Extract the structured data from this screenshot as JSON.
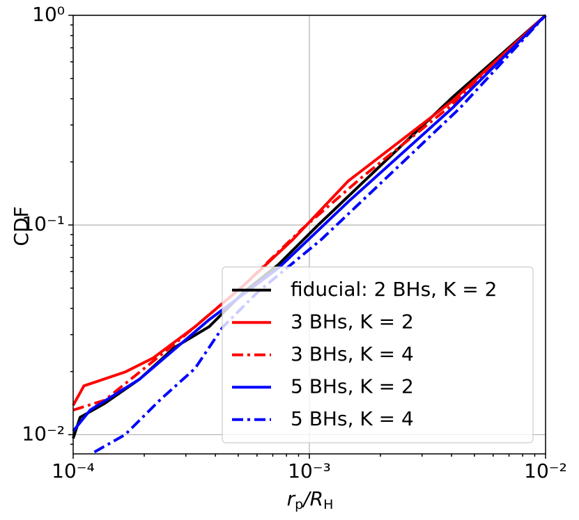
{
  "chart_data": {
    "type": "line",
    "y_label": "CDF",
    "x_label_parts": [
      "r",
      "p",
      "/R",
      "H"
    ],
    "xlog": true,
    "ylog": true,
    "grid": true,
    "legend": "lower right",
    "xlim": [
      0.0001,
      0.01
    ],
    "ylim": [
      0.0081,
      1
    ],
    "xticks": [
      {
        "value": 0.0001,
        "label": "10⁻⁴"
      },
      {
        "value": 0.001,
        "label": "10⁻³"
      },
      {
        "value": 0.01,
        "label": "10⁻²"
      }
    ],
    "yticks": [
      {
        "value": 0.01,
        "label": "10⁻²"
      },
      {
        "value": 0.1,
        "label": "10⁻¹"
      },
      {
        "value": 1,
        "label": "10⁰"
      }
    ],
    "xminorticks": [
      0.0002,
      0.0003,
      0.0004,
      0.0005,
      0.0006,
      0.0007,
      0.0008,
      0.0009,
      0.002,
      0.003,
      0.004,
      0.005,
      0.006,
      0.007,
      0.008,
      0.009
    ],
    "yminorticks": [
      0.009,
      0.02,
      0.03,
      0.04,
      0.05,
      0.06,
      0.07,
      0.08,
      0.09,
      0.2,
      0.3,
      0.4,
      0.5,
      0.6,
      0.7,
      0.8,
      0.9
    ],
    "series": [
      {
        "name": "fiducial: 2 BHs, K = 2",
        "color": "#000000",
        "dash": "solid",
        "x": [
          0.0001,
          0.000107,
          0.000136,
          0.000191,
          0.000268,
          0.000376,
          0.000528,
          0.000742,
          0.00109,
          0.00205,
          0.00404,
          0.01
        ],
        "values": [
          0.0096,
          0.0121,
          0.0141,
          0.0184,
          0.026,
          0.0327,
          0.0479,
          0.065,
          0.1,
          0.197,
          0.407,
          1
        ]
      },
      {
        "name": "3 BHs, K = 2",
        "color": "#ff0000",
        "dash": "solid",
        "x": [
          0.0001,
          0.000111,
          0.000166,
          0.000218,
          0.000328,
          0.000528,
          0.000849,
          0.00146,
          0.00404,
          0.01
        ],
        "values": [
          0.0138,
          0.0171,
          0.0199,
          0.0232,
          0.0327,
          0.0516,
          0.085,
          0.162,
          0.391,
          1
        ]
      },
      {
        "name": "3 BHs, K = 4",
        "color": "#ff0000",
        "dash": "dashdot",
        "x": [
          0.0001,
          0.000136,
          0.000268,
          0.000528,
          0.000925,
          0.00167,
          0.00404,
          0.01
        ],
        "values": [
          0.0131,
          0.0146,
          0.027,
          0.0516,
          0.095,
          0.169,
          0.376,
          1
        ]
      },
      {
        "name": "5 BHs, K = 2",
        "color": "#0000ff",
        "dash": "solid",
        "x": [
          0.0001,
          0.000118,
          0.000191,
          0.000376,
          0.000742,
          0.00146,
          0.00404,
          0.01
        ],
        "values": [
          0.0104,
          0.0131,
          0.0184,
          0.0353,
          0.0625,
          0.129,
          0.362,
          1
        ]
      },
      {
        "name": "5 BHs, K = 4",
        "color": "#0000ff",
        "dash": "dashdot",
        "x": [
          0.000123,
          0.000166,
          0.000234,
          0.000328,
          0.000431,
          0.000605,
          0.00112,
          0.00205,
          0.00435,
          0.01
        ],
        "values": [
          0.00826,
          0.01,
          0.0147,
          0.0207,
          0.0327,
          0.0479,
          0.085,
          0.162,
          0.362,
          1
        ]
      }
    ]
  }
}
